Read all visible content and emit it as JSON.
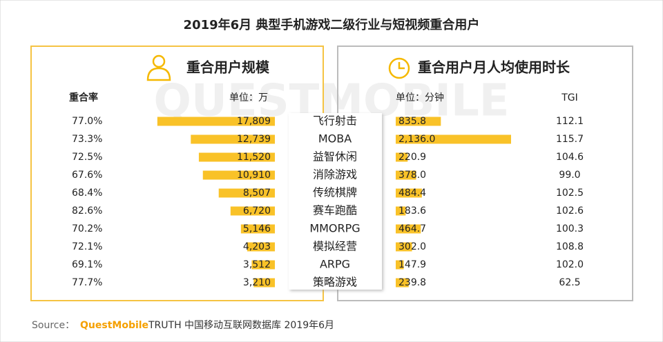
{
  "title": "2019年6月 典型手机游戏二级行业与短视频重合用户",
  "watermark": "QUESTMOBILE",
  "source": {
    "label": "Source：",
    "brand": "QuestMobile",
    "rest": "TRUTH 中国移动互联网数据库 2019年6月"
  },
  "chart_data": [
    {
      "type": "hbar-left",
      "title": "重合用户规模",
      "unit": "单位：万",
      "color": "#f9c228",
      "categories": [
        "飞行射击",
        "MOBA",
        "益智休闲",
        "消除游戏",
        "传统棋牌",
        "赛车跑酷",
        "MMORPG",
        "模拟经营",
        "ARPG",
        "策略游戏"
      ],
      "values": [
        17809,
        12739,
        11520,
        10910,
        8507,
        6720,
        5146,
        4203,
        3512,
        3210
      ],
      "value_labels": [
        "17,809",
        "12,739",
        "11,520",
        "10,910",
        "8,507",
        "6,720",
        "5,146",
        "4,203",
        "3,512",
        "3,210"
      ],
      "xlim": [
        0,
        18000
      ],
      "overlap_rate": {
        "label": "重合率",
        "values": [
          77.0,
          73.3,
          72.5,
          67.6,
          68.4,
          82.6,
          70.2,
          72.1,
          69.1,
          77.7
        ],
        "value_labels": [
          "77.0%",
          "73.3%",
          "72.5%",
          "67.6%",
          "68.4%",
          "82.6%",
          "70.2%",
          "72.1%",
          "69.1%",
          "77.7%"
        ]
      }
    },
    {
      "type": "hbar-right",
      "title": "重合用户月人均使用时长",
      "unit": "单位：分钟",
      "color": "#f9c228",
      "values": [
        835.8,
        2136.0,
        220.9,
        378.0,
        484.4,
        183.6,
        464.7,
        302.0,
        147.9,
        239.8
      ],
      "value_labels": [
        "835.8",
        "2,136.0",
        "220.9",
        "378.0",
        "484.4",
        "183.6",
        "464.7",
        "302.0",
        "147.9",
        "239.8"
      ],
      "xlim": [
        0,
        2200
      ],
      "tgi": {
        "label": "TGI",
        "values": [
          112.1,
          115.7,
          104.6,
          99.0,
          102.5,
          102.6,
          100.3,
          108.8,
          102.0,
          62.5
        ],
        "value_labels": [
          "112.1",
          "115.7",
          "104.6",
          "99.0",
          "102.5",
          "102.6",
          "100.3",
          "108.8",
          "102.0",
          "62.5"
        ]
      }
    }
  ]
}
